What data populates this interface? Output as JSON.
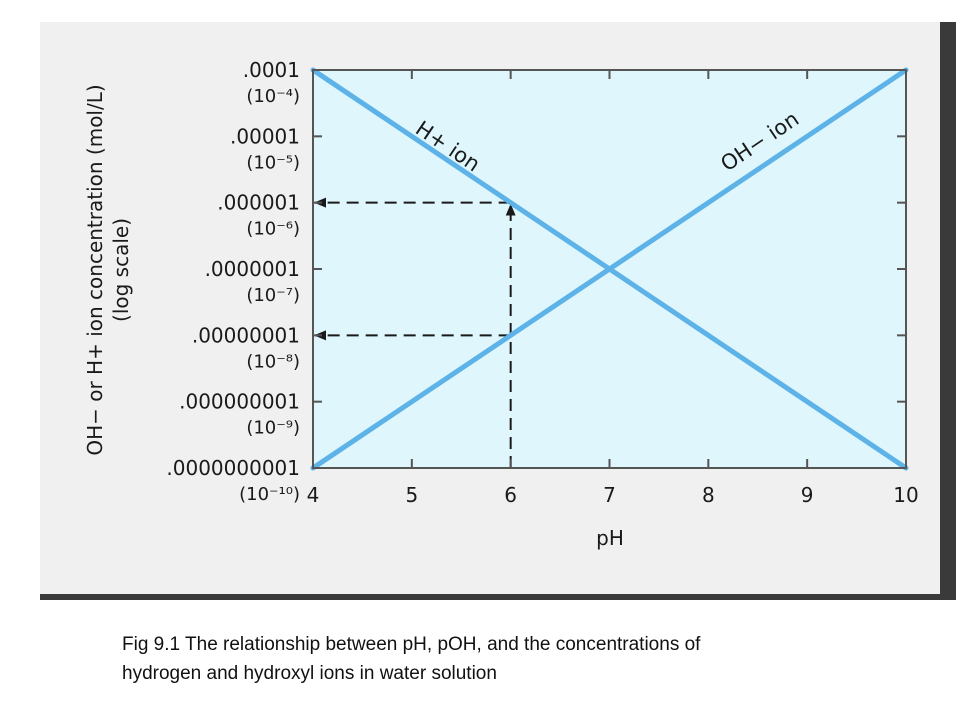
{
  "chart_data": {
    "type": "line",
    "xlabel": "pH",
    "ylabel": "OH− or H+ ion concentration (mol/L)",
    "ylabel_sub": "(log scale)",
    "xlim": [
      4,
      10
    ],
    "ylim": [
      -10,
      -4
    ],
    "y_scale": "log",
    "x_ticks": [
      "4",
      "5",
      "6",
      "7",
      "8",
      "9",
      "10"
    ],
    "y_ticks": [
      {
        "exp": -4,
        "label": ".0001",
        "sub": "(10⁻⁴)"
      },
      {
        "exp": -5,
        "label": ".00001",
        "sub": "(10⁻⁵)"
      },
      {
        "exp": -6,
        "label": ".000001",
        "sub": "(10⁻⁶)"
      },
      {
        "exp": -7,
        "label": ".0000001",
        "sub": "(10⁻⁷)"
      },
      {
        "exp": -8,
        "label": ".00000001",
        "sub": "(10⁻⁸)"
      },
      {
        "exp": -9,
        "label": ".000000001",
        "sub": "(10⁻⁹)"
      },
      {
        "exp": -10,
        "label": ".0000000001",
        "sub": "(10⁻¹⁰)"
      }
    ],
    "series": [
      {
        "name": "H+ ion",
        "x": [
          4,
          10
        ],
        "y": [
          0.0001,
          1e-10
        ]
      },
      {
        "name": "OH− ion",
        "x": [
          4,
          10
        ],
        "y": [
          1e-10,
          0.0001
        ]
      }
    ],
    "annotations": [
      {
        "type": "dashed-arrow",
        "x": 6,
        "from_y": 1e-10,
        "to_y": 1e-06
      },
      {
        "type": "dashed-arrow",
        "y": 1e-06,
        "from_x": 6,
        "to_x": 4
      },
      {
        "type": "dashed-arrow",
        "y": 1e-08,
        "from_x": 6,
        "to_x": 4
      }
    ],
    "grid": false,
    "colors": {
      "plot_background": "#dff6fd",
      "line": "#5db3e8",
      "axis": "#555555"
    }
  },
  "caption": {
    "line1": "Fig 9.1 The relationship between pH, pOH, and the concentrations of",
    "line2": "hydrogen and hydroxyl ions in water solution"
  }
}
